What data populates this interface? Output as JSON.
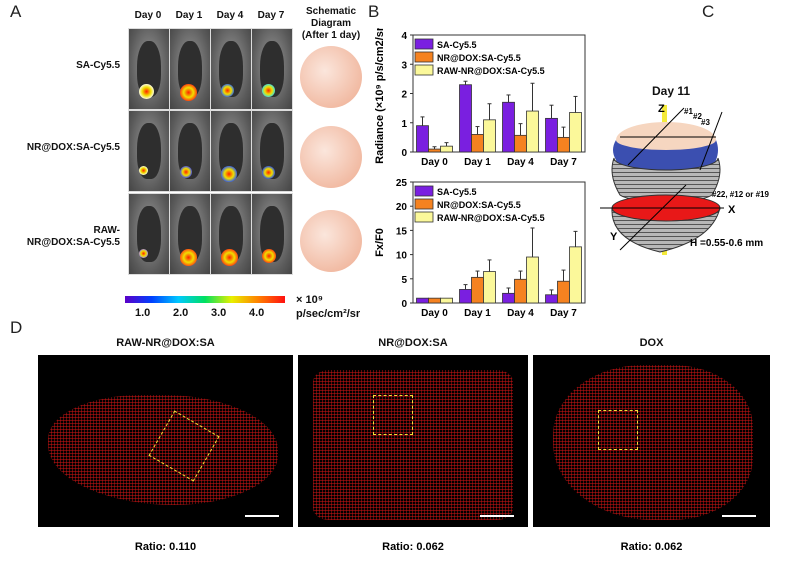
{
  "panels": {
    "a": "A",
    "b": "B",
    "c": "C",
    "d": "D"
  },
  "panel_a": {
    "days": [
      "Day 0",
      "Day 1",
      "Day 4",
      "Day 7"
    ],
    "rows": [
      "SA-Cy5.5",
      "NR@DOX:SA-Cy5.5",
      "RAW-\nNR@DOX:SA-Cy5.5"
    ],
    "schematic_title": "Schematic\nDiagram\n(After 1 day)",
    "colorbar": {
      "ticks": [
        "1.0",
        "2.0",
        "3.0",
        "4.0"
      ],
      "unit_scale": "× 10⁹",
      "unit": "p/sec/cm²/sr",
      "colors": [
        "#5b00c8",
        "#0040ff",
        "#00c8ff",
        "#00e060",
        "#e8f000",
        "#ff8000",
        "#ff1010"
      ]
    }
  },
  "panel_c": {
    "title": "Day 11",
    "axis_z": "Z",
    "axis_x": "X",
    "axis_y": "Y",
    "slice_1": "#1",
    "slice_2": "#2",
    "slice_3": "#3",
    "slice_mid": "#22, #12 or #19",
    "height": "H =0.55-0.6 mm"
  },
  "panel_d": {
    "images": [
      {
        "title": "RAW-NR@DOX:SA",
        "ratio": "Ratio: 0.110"
      },
      {
        "title": "NR@DOX:SA",
        "ratio": "Ratio: 0.062"
      },
      {
        "title": "DOX",
        "ratio": "Ratio: 0.062"
      }
    ]
  },
  "chart_data": [
    {
      "type": "bar",
      "categories": [
        "Day 0",
        "Day 1",
        "Day 4",
        "Day 7"
      ],
      "ylabel": "Radiance (×10⁹ p/s/cm2/sr)",
      "ylim": [
        0,
        4
      ],
      "yticks": [
        "0",
        "1",
        "2",
        "3",
        "4"
      ],
      "legend": "top-left",
      "series": [
        {
          "name": "SA-Cy5.5",
          "color": "#7a1fe0",
          "values": [
            0.9,
            2.3,
            1.7,
            1.15
          ],
          "errors": [
            0.3,
            0.12,
            0.25,
            0.45
          ]
        },
        {
          "name": "NR@DOX:SA-Cy5.5",
          "color": "#f58220",
          "values": [
            0.1,
            0.6,
            0.57,
            0.5
          ],
          "errors": [
            0.08,
            0.27,
            0.4,
            0.35
          ]
        },
        {
          "name": "RAW-NR@DOX:SA-Cy5.5",
          "color": "#fbf89a",
          "values": [
            0.2,
            1.1,
            1.4,
            1.35
          ],
          "errors": [
            0.12,
            0.55,
            0.95,
            0.55
          ]
        }
      ]
    },
    {
      "type": "bar",
      "categories": [
        "Day 0",
        "Day 1",
        "Day 4",
        "Day 7"
      ],
      "ylabel": "Fx/F0",
      "ylim": [
        0,
        25
      ],
      "yticks": [
        "0",
        "5",
        "10",
        "15",
        "20",
        "25"
      ],
      "legend": "top-left",
      "series": [
        {
          "name": "SA-Cy5.5",
          "color": "#7a1fe0",
          "values": [
            1,
            2.8,
            2,
            1.7
          ],
          "errors": [
            0,
            1,
            1.1,
            1
          ]
        },
        {
          "name": "NR@DOX:SA-Cy5.5",
          "color": "#f58220",
          "values": [
            1,
            5.3,
            4.9,
            4.5
          ],
          "errors": [
            0,
            1.3,
            1.7,
            2.3
          ]
        },
        {
          "name": "RAW-NR@DOX:SA-Cy5.5",
          "color": "#fbf89a",
          "values": [
            1,
            6.5,
            9.5,
            11.6
          ],
          "errors": [
            0,
            2.4,
            6,
            3.2
          ]
        }
      ]
    }
  ]
}
